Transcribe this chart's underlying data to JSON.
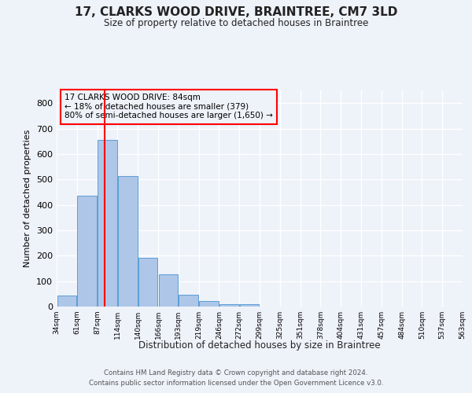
{
  "title": "17, CLARKS WOOD DRIVE, BRAINTREE, CM7 3LD",
  "subtitle": "Size of property relative to detached houses in Braintree",
  "xlabel": "Distribution of detached houses by size in Braintree",
  "ylabel": "Number of detached properties",
  "bar_color": "#aec6e8",
  "bar_edge_color": "#5a9ed6",
  "bar_values": [
    44,
    437,
    655,
    512,
    192,
    126,
    45,
    22,
    10,
    8,
    0,
    0,
    0,
    0,
    0,
    0,
    0,
    0,
    0,
    0
  ],
  "bin_labels": [
    "34sqm",
    "61sqm",
    "87sqm",
    "114sqm",
    "140sqm",
    "166sqm",
    "193sqm",
    "219sqm",
    "246sqm",
    "272sqm",
    "299sqm",
    "325sqm",
    "351sqm",
    "378sqm",
    "404sqm",
    "431sqm",
    "457sqm",
    "484sqm",
    "510sqm",
    "537sqm",
    "563sqm"
  ],
  "ylim": [
    0,
    850
  ],
  "yticks": [
    0,
    100,
    200,
    300,
    400,
    500,
    600,
    700,
    800
  ],
  "property_label": "17 CLARKS WOOD DRIVE: 84sqm",
  "annotation_line1": "← 18% of detached houses are smaller (379)",
  "annotation_line2": "80% of semi-detached houses are larger (1,650) →",
  "red_line_x": 1.85,
  "background_color": "#eef2f9",
  "grid_color": "#ffffff",
  "footer_line1": "Contains HM Land Registry data © Crown copyright and database right 2024.",
  "footer_line2": "Contains public sector information licensed under the Open Government Licence v3.0."
}
